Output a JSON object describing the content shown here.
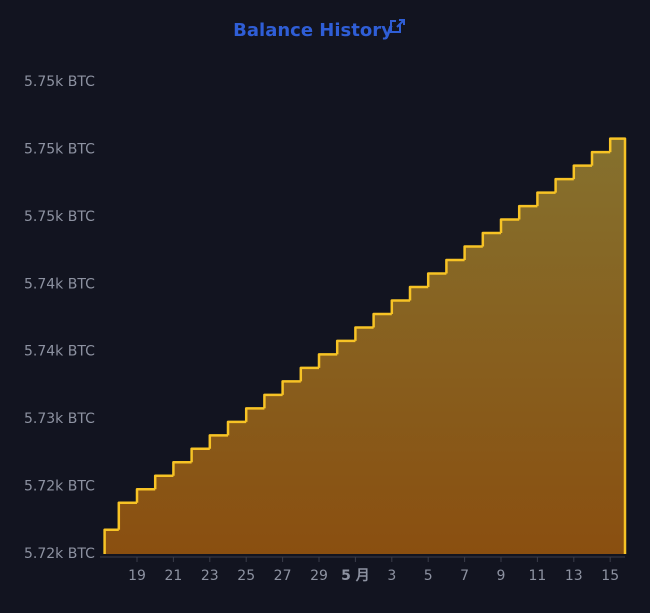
{
  "chart_data": {
    "type": "step-area",
    "title": "Balance History",
    "categories": [
      null,
      null,
      "19",
      null,
      "21",
      null,
      "23",
      null,
      "25",
      null,
      "27",
      null,
      "29",
      null,
      "5 月",
      null,
      "3",
      null,
      "5",
      null,
      "7",
      null,
      "9",
      null,
      "11",
      null,
      "13",
      null,
      "15"
    ],
    "values": [
      5721.8,
      5723.8,
      5724.8,
      5725.8,
      5726.8,
      5727.8,
      5728.8,
      5729.8,
      5730.8,
      5731.8,
      5732.8,
      5733.8,
      5734.8,
      5735.8,
      5736.8,
      5737.8,
      5738.8,
      5739.8,
      5740.8,
      5741.8,
      5742.8,
      5743.8,
      5744.8,
      5745.8,
      5746.8,
      5747.8,
      5748.8,
      5749.8,
      5750.8
    ],
    "color": "#f7c325",
    "ylim": [
      5720,
      5755
    ],
    "yticks": [
      {
        "value": 5720,
        "label": "5.72k BTC"
      },
      {
        "value": 5725,
        "label": "5.72k BTC"
      },
      {
        "value": 5730,
        "label": "5.73k BTC"
      },
      {
        "value": 5735,
        "label": "5.74k BTC"
      },
      {
        "value": 5740,
        "label": "5.74k BTC"
      },
      {
        "value": 5745,
        "label": "5.75k BTC"
      },
      {
        "value": 5750,
        "label": "5.75k BTC"
      },
      {
        "value": 5755,
        "label": "5.75k BTC"
      }
    ],
    "grid": false
  }
}
